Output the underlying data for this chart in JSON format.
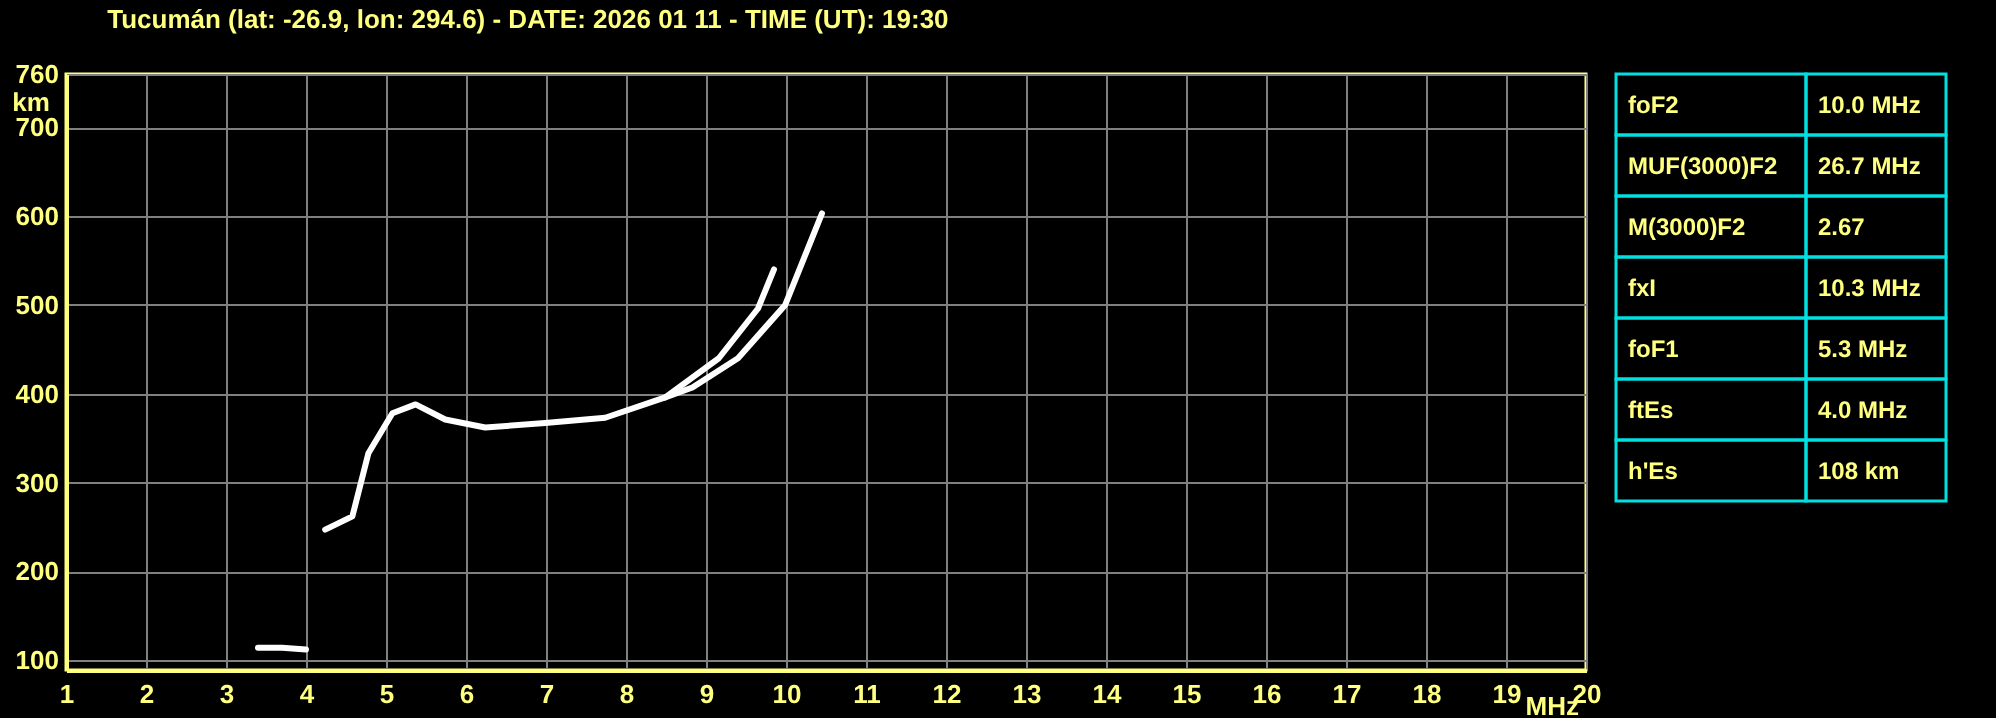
{
  "chart_data": [
    {
      "type": "line",
      "title": "Tucumán (lat: -26.9, lon: 294.6) - DATE: 2026 01 11 - TIME (UT): 19:30",
      "xlabel": "MHz",
      "ylabel": "km",
      "xlim": [
        1,
        20
      ],
      "ylim": [
        89,
        760
      ],
      "xticks": [
        1,
        2,
        3,
        4,
        5,
        6,
        7,
        8,
        9,
        10,
        11,
        12,
        13,
        14,
        15,
        16,
        17,
        18,
        19,
        20
      ],
      "yticks": [
        100,
        200,
        300,
        400,
        500,
        600,
        700,
        760
      ],
      "grid": true,
      "series": [
        {
          "color": "#ffffff",
          "x": [
            4.24,
            4.58,
            4.78,
            5.08,
            5.37,
            5.74,
            6.24,
            6.99,
            7.74,
            8.49,
            9.16,
            9.65,
            9.85
          ],
          "values": [
            247,
            262,
            333,
            378,
            388,
            371,
            362,
            367,
            373,
            396,
            440,
            496,
            540
          ]
        },
        {
          "color": "#ffffff",
          "x": [
            8.49,
            8.83,
            9.4,
            9.99,
            10.24,
            10.45
          ],
          "values": [
            396,
            407,
            440,
            500,
            556,
            603
          ]
        },
        {
          "color": "#ffffff",
          "x": [
            3.4,
            3.7,
            4.0
          ],
          "values": [
            114,
            114,
            112
          ]
        }
      ]
    },
    {
      "type": "other",
      "annotations": [
        "foF2",
        "10.0 MHz",
        "MUF(3000)F2",
        "26.7 MHz",
        "M(3000)F2",
        "2.67",
        "fxI",
        "10.3 MHz",
        "foF1",
        "5.3 MHz",
        "ftEs",
        "4.0 MHz",
        "h'Es",
        "108 km"
      ]
    }
  ]
}
